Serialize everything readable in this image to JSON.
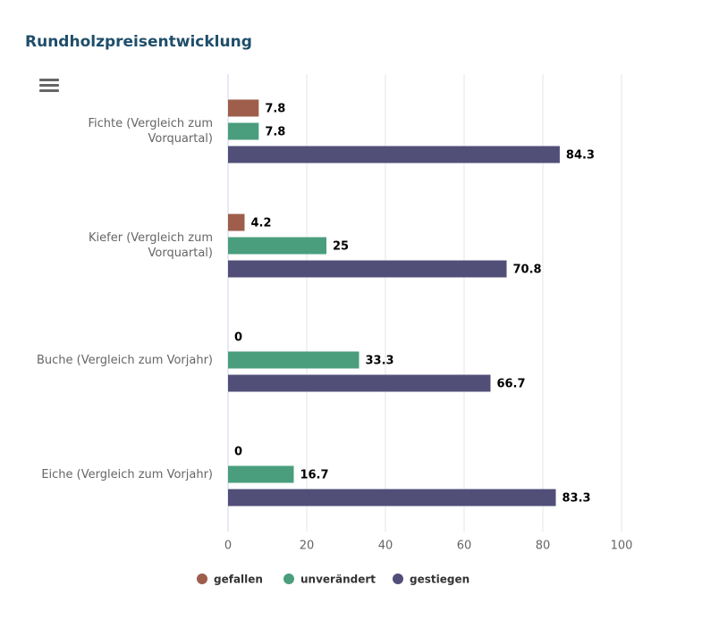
{
  "chart_data": {
    "type": "bar",
    "orientation": "horizontal",
    "title": "Rundholzpreisentwicklung",
    "categories": [
      "Fichte (Vergleich zum Vorquartal)",
      "Kiefer (Vergleich zum Vorquartal)",
      "Buche (Vergleich zum Vorjahr)",
      "Eiche (Vergleich zum Vorjahr)"
    ],
    "series": [
      {
        "name": "gefallen",
        "color": "#9e5e4b",
        "values": [
          7.8,
          4.2,
          0,
          0
        ]
      },
      {
        "name": "unverändert",
        "color": "#4a9e7d",
        "values": [
          7.8,
          25,
          33.3,
          16.7
        ]
      },
      {
        "name": "gestiegen",
        "color": "#514f78",
        "values": [
          84.3,
          70.8,
          66.7,
          83.3
        ]
      }
    ],
    "xlim": [
      0,
      100
    ],
    "xticks": [
      0,
      20,
      40,
      60,
      80,
      100
    ],
    "grid": true
  }
}
